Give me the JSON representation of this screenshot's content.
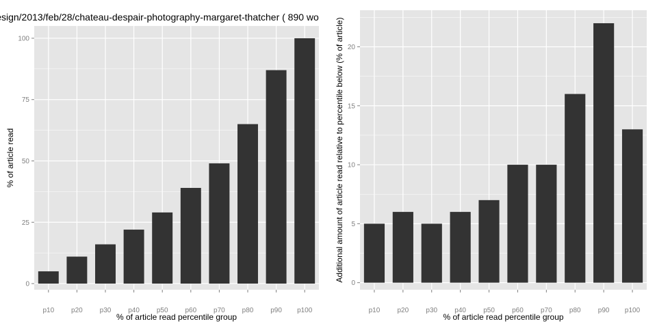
{
  "chart_data": [
    {
      "type": "bar",
      "title": "esign/2013/feb/28/chateau-despair-photography-margaret-thatcher ( 890 wo",
      "xlabel": "% of article read percentile group",
      "ylabel": "% of article read",
      "categories": [
        "p10",
        "p20",
        "p30",
        "p40",
        "p50",
        "p60",
        "p70",
        "p80",
        "p90",
        "p100"
      ],
      "values": [
        5,
        11,
        16,
        22,
        29,
        39,
        49,
        65,
        87,
        100
      ],
      "ylim": [
        -2.5,
        105
      ],
      "yticks": [
        0,
        25,
        50,
        75,
        100
      ],
      "grid": true,
      "bar_color": "#333333",
      "panel_color": "#e5e5e5",
      "grid_color": "#ffffff"
    },
    {
      "type": "bar",
      "title": "",
      "xlabel": "% of article read percentile group",
      "ylabel": "Additional amount of article read relative to percentile below (% of article)",
      "categories": [
        "p10",
        "p20",
        "p30",
        "p40",
        "p50",
        "p60",
        "p70",
        "p80",
        "p90",
        "p100"
      ],
      "values": [
        5,
        6,
        5,
        6,
        7,
        10,
        10,
        16,
        22,
        13
      ],
      "ylim": [
        -0.6,
        23.1
      ],
      "yticks": [
        0,
        5,
        10,
        15,
        20
      ],
      "grid": true,
      "bar_color": "#333333",
      "panel_color": "#e5e5e5",
      "grid_color": "#ffffff"
    }
  ]
}
